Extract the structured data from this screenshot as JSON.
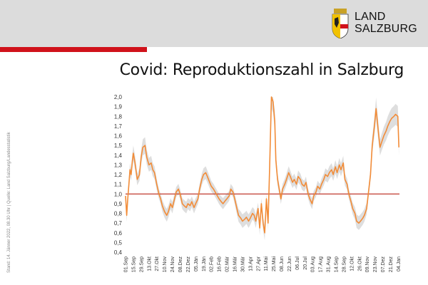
{
  "header": {
    "logo_line1": "LAND",
    "logo_line2": "SALZBURG",
    "brand_color": "#d0121b",
    "background_color": "#dcdcdc"
  },
  "title": "Covid: Reproduktionszahl in Salzburg",
  "source_note": "Stand:  14. Jänner  2022, 08.30 Uhr  |  Quelle: Land Salzburg/Landesstatistik",
  "chart_data": {
    "type": "line",
    "title": "Covid: Reproduktionszahl in Salzburg",
    "xlabel": "",
    "ylabel": "",
    "ylim": [
      0.4,
      2.0
    ],
    "yticks": [
      "2,0",
      "1,9",
      "1,8",
      "1,7",
      "1,6",
      "1,5",
      "1,4",
      "1,3",
      "1,2",
      "1,1",
      "1,0",
      "0,9",
      "0,8",
      "0,7",
      "0,6",
      "0,5",
      "0,4"
    ],
    "xticks": [
      "01.Sep",
      "15.Sep",
      "29.Sep",
      "13.Okt",
      "27.Okt",
      "10.Nov",
      "24.Nov",
      "08.Dez",
      "22.Dez",
      "05.Jän",
      "19.Jän",
      "02.Feb",
      "16.Feb",
      "02.Mär",
      "16.Mär",
      "30.Mär",
      "13.Apr",
      "27.Apr",
      "11.Mai",
      "25.Mai",
      "08.Jun",
      "22.Jun",
      "06.Jul",
      "20.Jul",
      "03.Aug",
      "17.Aug",
      "31.Aug",
      "14.Sep",
      "28.Sep",
      "12.Okt",
      "26.Okt",
      "09.Nov",
      "23.Nov",
      "07.Dez",
      "21.Dez",
      "04.Jan"
    ],
    "reference_line": {
      "y": 1.0,
      "color": "#c0392b"
    },
    "line_color": "#f28c38",
    "band_color": "#d8d8d8",
    "x_step_days": 14,
    "series": [
      {
        "x": [
          0,
          2,
          4,
          6,
          8,
          10,
          12,
          14,
          17,
          21,
          25,
          28,
          31,
          35,
          38,
          42,
          46,
          49,
          52,
          56,
          60,
          63,
          66,
          70,
          74,
          77,
          81,
          84,
          88,
          91,
          95,
          98,
          102,
          105,
          109,
          112,
          116,
          119,
          123,
          126,
          130,
          133,
          137,
          140,
          144,
          147,
          151,
          154,
          158,
          161,
          165,
          168,
          172,
          175,
          179,
          182,
          186,
          189,
          193,
          196,
          200,
          203,
          207,
          210,
          214,
          217,
          221,
          224,
          228,
          231,
          234,
          238,
          241,
          244,
          247,
          250,
          253,
          256,
          259,
          262,
          265,
          268,
          270,
          273,
          276,
          279,
          282,
          286,
          289,
          293,
          296,
          300,
          303,
          307,
          310,
          314,
          317,
          321,
          324,
          328,
          331,
          335,
          338,
          342,
          345,
          349,
          352,
          356,
          359,
          363,
          366,
          370,
          373,
          377,
          380,
          384,
          387,
          391,
          394,
          398,
          401,
          405,
          408,
          412,
          415,
          419,
          422,
          426,
          429,
          433,
          436,
          440,
          443,
          447,
          450,
          454,
          457,
          461,
          464,
          468,
          471,
          475,
          478,
          482,
          485,
          489,
          491
        ],
        "y": [
          0.98,
          0.78,
          0.95,
          1.1,
          1.25,
          1.2,
          1.33,
          1.42,
          1.32,
          1.15,
          1.2,
          1.38,
          1.48,
          1.5,
          1.38,
          1.3,
          1.32,
          1.25,
          1.22,
          1.1,
          1.0,
          0.95,
          0.88,
          0.82,
          0.78,
          0.82,
          0.9,
          0.86,
          0.95,
          1.02,
          1.05,
          1.0,
          0.9,
          0.88,
          0.86,
          0.9,
          0.88,
          0.92,
          0.86,
          0.9,
          0.95,
          1.05,
          1.15,
          1.2,
          1.22,
          1.18,
          1.12,
          1.08,
          1.05,
          1.02,
          0.98,
          0.95,
          0.92,
          0.9,
          0.93,
          0.95,
          0.98,
          1.05,
          1.02,
          0.95,
          0.85,
          0.78,
          0.75,
          0.72,
          0.74,
          0.76,
          0.72,
          0.75,
          0.8,
          0.78,
          0.72,
          0.85,
          0.65,
          0.9,
          0.7,
          0.6,
          0.95,
          0.7,
          1.3,
          2.0,
          1.95,
          1.75,
          1.35,
          1.15,
          1.05,
          0.95,
          1.05,
          1.1,
          1.15,
          1.22,
          1.18,
          1.12,
          1.15,
          1.1,
          1.18,
          1.15,
          1.1,
          1.08,
          1.12,
          1.0,
          0.95,
          0.9,
          0.98,
          1.02,
          1.08,
          1.05,
          1.1,
          1.15,
          1.2,
          1.18,
          1.22,
          1.25,
          1.2,
          1.28,
          1.22,
          1.3,
          1.25,
          1.32,
          1.15,
          1.1,
          1.0,
          0.92,
          0.85,
          0.8,
          0.72,
          0.7,
          0.72,
          0.75,
          0.78,
          0.85,
          1.0,
          1.2,
          1.5,
          1.7,
          1.88,
          1.65,
          1.48,
          1.55,
          1.6,
          1.65,
          1.7,
          1.75,
          1.78,
          1.8,
          1.82,
          1.8,
          1.48
        ]
      }
    ]
  }
}
